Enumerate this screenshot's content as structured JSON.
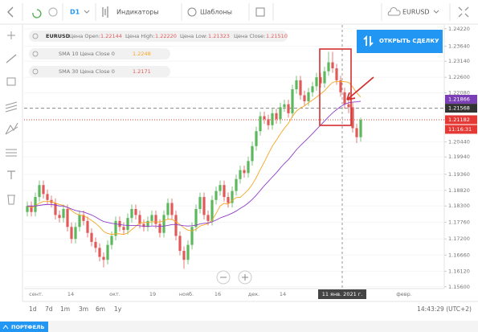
{
  "toolbar": {
    "timeframe": "D1",
    "indicators": "Индикаторы",
    "templates": "Шаблоны",
    "symbol": "EURUSD"
  },
  "legend": {
    "symbol": "EURUSD",
    "fields": [
      {
        "label": "Цена Open:",
        "value": "1.22144"
      },
      {
        "label": "Цена High:",
        "value": "1.22220"
      },
      {
        "label": "Цена Low:",
        "value": "1.21323"
      },
      {
        "label": "Цена Close:",
        "value": "1.21510"
      }
    ],
    "indicators": [
      {
        "name": "SMA 10 Цена Close 0",
        "value": "1.2248",
        "color": "#f5a623"
      },
      {
        "name": "SMA 30 Цена Close 0",
        "value": "1.2171",
        "color": "#e05a5a"
      }
    ]
  },
  "trade_button": "ОТКРЫТЬ СДЕЛКУ",
  "periods": [
    "1d",
    "7d",
    "1m",
    "3m",
    "6m",
    "1y"
  ],
  "clock": "14:43:29 (UTC+2)",
  "footer_tab": "ПОРТФЕЛЬ",
  "chart_data": {
    "type": "candlestick",
    "up_color": "#5cb85c",
    "down_color": "#e05a5a",
    "ylim": [
      1.1554,
      1.2435
    ],
    "yticks": [
      {
        "value": 1.2422,
        "label": "1.24220"
      },
      {
        "value": 1.2364,
        "label": "1.23640"
      },
      {
        "value": 1.2314,
        "label": "1.23140"
      },
      {
        "value": 1.226,
        "label": "1.22600"
      },
      {
        "value": 1.2208,
        "label": "1.22080"
      },
      {
        "value": 1.2044,
        "label": "1.20440"
      },
      {
        "value": 1.1994,
        "label": "1.19940"
      },
      {
        "value": 1.1936,
        "label": "1.19360"
      },
      {
        "value": 1.1882,
        "label": "1.18820"
      },
      {
        "value": 1.183,
        "label": "1.18300"
      },
      {
        "value": 1.1776,
        "label": "1.17760"
      },
      {
        "value": 1.172,
        "label": "1.17200"
      },
      {
        "value": 1.1666,
        "label": "1.16660"
      },
      {
        "value": 1.1612,
        "label": "1.16120"
      },
      {
        "value": 1.156,
        "label": "1.15600"
      }
    ],
    "x_labels": [
      "сент.",
      "14",
      "окт.",
      "19",
      "нояб.",
      "16",
      "дек.",
      "14",
      "февр."
    ],
    "crosshair_label": "11 янв. 2021 г.",
    "price_lines": [
      {
        "value": 1.21866,
        "color": "#7b3fb5"
      },
      {
        "value": 1.21568,
        "color": "#333333"
      },
      {
        "value": 1.21182,
        "color": "#e53935"
      }
    ],
    "timer": "11:16:31",
    "open": [
      1.181,
      1.183,
      1.181,
      1.186,
      1.19,
      1.187,
      1.185,
      1.184,
      1.18,
      1.179,
      1.182,
      1.176,
      1.172,
      1.176,
      1.18,
      1.178,
      1.174,
      1.171,
      1.169,
      1.166,
      1.165,
      1.17,
      1.173,
      1.178,
      1.176,
      1.175,
      1.179,
      1.182,
      1.18,
      1.177,
      1.176,
      1.178,
      1.18,
      1.177,
      1.174,
      1.18,
      1.184,
      1.18,
      1.173,
      1.168,
      1.165,
      1.17,
      1.176,
      1.182,
      1.186,
      1.18,
      1.178,
      1.185,
      1.188,
      1.19,
      1.186,
      1.184,
      1.188,
      1.192,
      1.195,
      1.194,
      1.198,
      1.203,
      1.208,
      1.213,
      1.212,
      1.21,
      1.214,
      1.212,
      1.216,
      1.217,
      1.214,
      1.222,
      1.225,
      1.22,
      1.218,
      1.221,
      1.223,
      1.226,
      1.224,
      1.228,
      1.231,
      1.229,
      1.225,
      1.221,
      1.217,
      1.216,
      1.209,
      1.206
    ],
    "high": [
      1.1845,
      1.1845,
      1.1875,
      1.1915,
      1.1915,
      1.1885,
      1.1865,
      1.1855,
      1.1815,
      1.1835,
      1.1835,
      1.1775,
      1.1775,
      1.1815,
      1.1815,
      1.1795,
      1.1755,
      1.1725,
      1.1705,
      1.1675,
      1.1715,
      1.1745,
      1.1795,
      1.1795,
      1.1775,
      1.1805,
      1.1835,
      1.1835,
      1.1815,
      1.1785,
      1.1795,
      1.1815,
      1.1815,
      1.1785,
      1.1815,
      1.1855,
      1.1855,
      1.1815,
      1.1745,
      1.1695,
      1.1715,
      1.1775,
      1.1835,
      1.1875,
      1.1875,
      1.1815,
      1.1865,
      1.1895,
      1.1915,
      1.1915,
      1.1875,
      1.1895,
      1.1935,
      1.1965,
      1.1965,
      1.1995,
      1.2045,
      1.2095,
      1.2145,
      1.2145,
      1.2135,
      1.2155,
      1.2155,
      1.2175,
      1.2185,
      1.2185,
      1.2235,
      1.2265,
      1.2265,
      1.2215,
      1.2225,
      1.2245,
      1.2275,
      1.2275,
      1.2295,
      1.2345,
      1.2345,
      1.2305,
      1.2265,
      1.2225,
      1.2185,
      1.2175,
      1.2105,
      1.2125
    ],
    "low": [
      1.1795,
      1.1795,
      1.1795,
      1.1845,
      1.1855,
      1.1835,
      1.1825,
      1.1785,
      1.1775,
      1.1775,
      1.1745,
      1.1705,
      1.1705,
      1.1745,
      1.1765,
      1.1725,
      1.1695,
      1.1675,
      1.1645,
      1.1625,
      1.1635,
      1.1685,
      1.1715,
      1.1745,
      1.1735,
      1.1735,
      1.1775,
      1.1785,
      1.1755,
      1.1745,
      1.1745,
      1.1765,
      1.1755,
      1.1725,
      1.1725,
      1.1785,
      1.1785,
      1.1715,
      1.1665,
      1.162,
      1.1635,
      1.1685,
      1.1745,
      1.1805,
      1.1785,
      1.1765,
      1.1765,
      1.1835,
      1.1865,
      1.1845,
      1.1825,
      1.1825,
      1.1865,
      1.1905,
      1.1925,
      1.1925,
      1.1965,
      1.2015,
      1.2065,
      1.2105,
      1.2085,
      1.2085,
      1.2105,
      1.2105,
      1.2145,
      1.2125,
      1.2125,
      1.2205,
      1.2185,
      1.2165,
      1.2165,
      1.2195,
      1.2215,
      1.2225,
      1.2225,
      1.2265,
      1.2275,
      1.2235,
      1.2195,
      1.2155,
      1.214,
      1.2075,
      1.204,
      1.2045
    ],
    "close": [
      1.183,
      1.181,
      1.186,
      1.19,
      1.187,
      1.185,
      1.184,
      1.18,
      1.179,
      1.182,
      1.176,
      1.172,
      1.176,
      1.18,
      1.178,
      1.174,
      1.171,
      1.169,
      1.166,
      1.165,
      1.17,
      1.173,
      1.178,
      1.176,
      1.175,
      1.179,
      1.182,
      1.18,
      1.177,
      1.176,
      1.178,
      1.18,
      1.177,
      1.174,
      1.18,
      1.184,
      1.18,
      1.173,
      1.168,
      1.165,
      1.17,
      1.176,
      1.182,
      1.186,
      1.18,
      1.178,
      1.185,
      1.188,
      1.19,
      1.186,
      1.184,
      1.188,
      1.192,
      1.195,
      1.194,
      1.198,
      1.203,
      1.208,
      1.213,
      1.212,
      1.21,
      1.214,
      1.212,
      1.216,
      1.217,
      1.214,
      1.222,
      1.225,
      1.22,
      1.218,
      1.221,
      1.223,
      1.226,
      1.224,
      1.228,
      1.231,
      1.229,
      1.225,
      1.221,
      1.217,
      1.216,
      1.209,
      1.206,
      1.2118
    ],
    "sma": [
      {
        "color": "#f5a623",
        "values": [
          1.183,
          1.1825,
          1.183,
          1.184,
          1.1845,
          1.1845,
          1.1845,
          1.184,
          1.1835,
          1.1832,
          1.1825,
          1.1815,
          1.1805,
          1.18,
          1.1798,
          1.179,
          1.1782,
          1.1772,
          1.176,
          1.1745,
          1.1738,
          1.1735,
          1.1737,
          1.1737,
          1.1735,
          1.174,
          1.1751,
          1.1762,
          1.1772,
          1.1775,
          1.1775,
          1.1777,
          1.1777,
          1.1776,
          1.1781,
          1.1786,
          1.1785,
          1.1778,
          1.1768,
          1.1757,
          1.1749,
          1.1747,
          1.1752,
          1.1763,
          1.1767,
          1.1771,
          1.1783,
          1.1805,
          1.183,
          1.1839,
          1.1836,
          1.1848,
          1.1858,
          1.1859,
          1.1871,
          1.1884,
          1.1902,
          1.1925,
          1.1952,
          1.1977,
          1.2004,
          1.203,
          1.205,
          1.2071,
          1.209,
          1.2106,
          1.213,
          1.2147,
          1.2158,
          1.2164,
          1.2175,
          1.2184,
          1.2194,
          1.2204,
          1.2215,
          1.223,
          1.2243,
          1.2246,
          1.2246,
          1.2245,
          1.2243,
          1.2228,
          1.2208,
          1.2194
        ]
      },
      {
        "color": "#8e3cc9",
        "values": [
          1.183,
          1.183,
          1.183,
          1.1832,
          1.1834,
          1.1835,
          1.1835,
          1.1833,
          1.183,
          1.183,
          1.1825,
          1.182,
          1.1815,
          1.1812,
          1.181,
          1.1805,
          1.18,
          1.1793,
          1.1785,
          1.1778,
          1.1775,
          1.1772,
          1.177,
          1.1768,
          1.1766,
          1.1765,
          1.1765,
          1.1765,
          1.1764,
          1.1762,
          1.1762,
          1.1763,
          1.1763,
          1.1762,
          1.1763,
          1.1765,
          1.1768,
          1.1768,
          1.1766,
          1.1764,
          1.1763,
          1.1764,
          1.1766,
          1.177,
          1.1772,
          1.1773,
          1.1777,
          1.1783,
          1.179,
          1.1795,
          1.18,
          1.1806,
          1.1813,
          1.1822,
          1.183,
          1.184,
          1.1852,
          1.1866,
          1.1882,
          1.1898,
          1.1912,
          1.1927,
          1.1941,
          1.1957,
          1.1972,
          1.1985,
          1.2001,
          1.2018,
          1.2032,
          1.2045,
          1.2058,
          1.2072,
          1.2086,
          1.21,
          1.2114,
          1.2128,
          1.2141,
          1.2152,
          1.2162,
          1.217,
          1.2175,
          1.2177,
          1.2178,
          1.218
        ]
      }
    ]
  }
}
